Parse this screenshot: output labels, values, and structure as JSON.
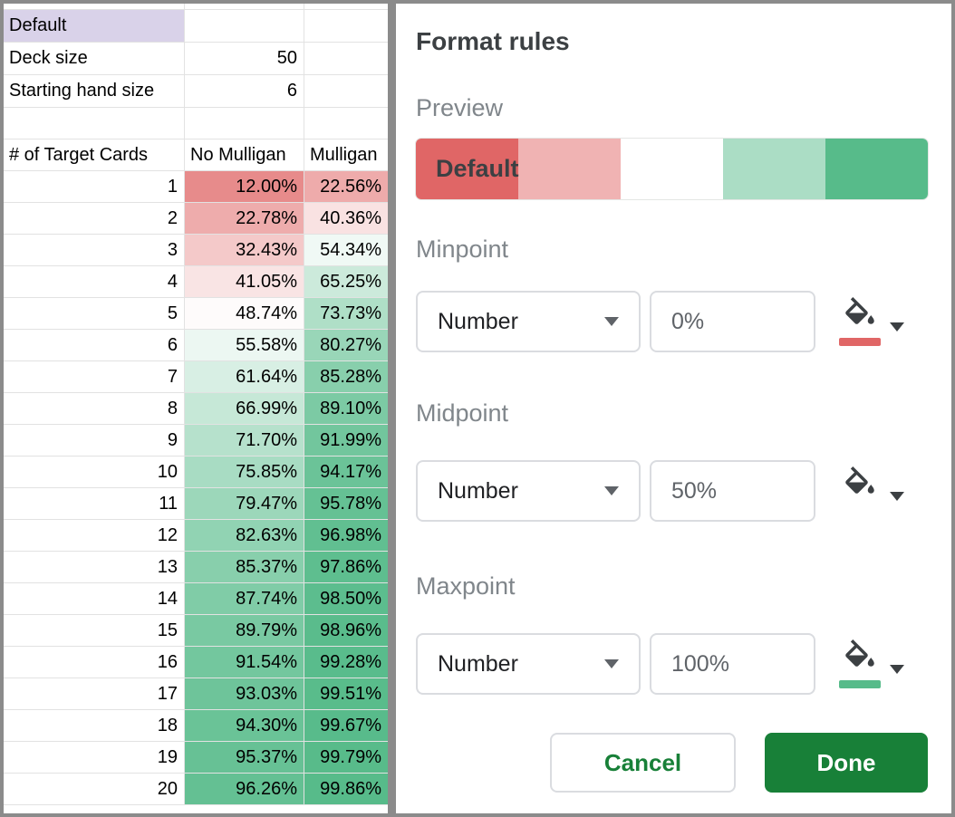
{
  "spreadsheet": {
    "info_rows": [
      {
        "label": "Default",
        "value": ""
      },
      {
        "label": "Deck size",
        "value": "50"
      },
      {
        "label": "Starting hand size",
        "value": "6"
      }
    ],
    "header": [
      "# of Target Cards",
      "No Mulligan",
      "Mulligan"
    ],
    "rows": [
      {
        "target": "1",
        "no_mulligan": "12.00%",
        "mulligan": "22.56%"
      },
      {
        "target": "2",
        "no_mulligan": "22.78%",
        "mulligan": "40.36%"
      },
      {
        "target": "3",
        "no_mulligan": "32.43%",
        "mulligan": "54.34%"
      },
      {
        "target": "4",
        "no_mulligan": "41.05%",
        "mulligan": "65.25%"
      },
      {
        "target": "5",
        "no_mulligan": "48.74%",
        "mulligan": "73.73%"
      },
      {
        "target": "6",
        "no_mulligan": "55.58%",
        "mulligan": "80.27%"
      },
      {
        "target": "7",
        "no_mulligan": "61.64%",
        "mulligan": "85.28%"
      },
      {
        "target": "8",
        "no_mulligan": "66.99%",
        "mulligan": "89.10%"
      },
      {
        "target": "9",
        "no_mulligan": "71.70%",
        "mulligan": "91.99%"
      },
      {
        "target": "10",
        "no_mulligan": "75.85%",
        "mulligan": "94.17%"
      },
      {
        "target": "11",
        "no_mulligan": "79.47%",
        "mulligan": "95.78%"
      },
      {
        "target": "12",
        "no_mulligan": "82.63%",
        "mulligan": "96.98%"
      },
      {
        "target": "13",
        "no_mulligan": "85.37%",
        "mulligan": "97.86%"
      },
      {
        "target": "14",
        "no_mulligan": "87.74%",
        "mulligan": "98.50%"
      },
      {
        "target": "15",
        "no_mulligan": "89.79%",
        "mulligan": "98.96%"
      },
      {
        "target": "16",
        "no_mulligan": "91.54%",
        "mulligan": "99.28%"
      },
      {
        "target": "17",
        "no_mulligan": "93.03%",
        "mulligan": "99.51%"
      },
      {
        "target": "18",
        "no_mulligan": "94.30%",
        "mulligan": "99.67%"
      },
      {
        "target": "19",
        "no_mulligan": "95.37%",
        "mulligan": "99.79%"
      },
      {
        "target": "20",
        "no_mulligan": "96.26%",
        "mulligan": "99.86%"
      }
    ]
  },
  "panel": {
    "title": "Format rules",
    "preview": {
      "label": "Preview",
      "text": "Default",
      "segments": [
        "#E06666",
        "#F0B3B3",
        "#FFFFFF",
        "#ABDDC5",
        "#57BB8A"
      ]
    },
    "sections": [
      {
        "label": "Minpoint",
        "type": "Number",
        "value": "0%",
        "color": "#E06666"
      },
      {
        "label": "Midpoint",
        "type": "Number",
        "value": "50%",
        "color": "#FFFFFF"
      },
      {
        "label": "Maxpoint",
        "type": "Number",
        "value": "100%",
        "color": "#57BB8A"
      }
    ],
    "cancel_label": "Cancel",
    "done_label": "Done"
  },
  "colors": {
    "scale_min": "#E06666",
    "scale_mid": "#FFFFFF",
    "scale_max": "#57BB8A",
    "selected_cell": "#D9D2E9",
    "accent_green": "#188038"
  }
}
